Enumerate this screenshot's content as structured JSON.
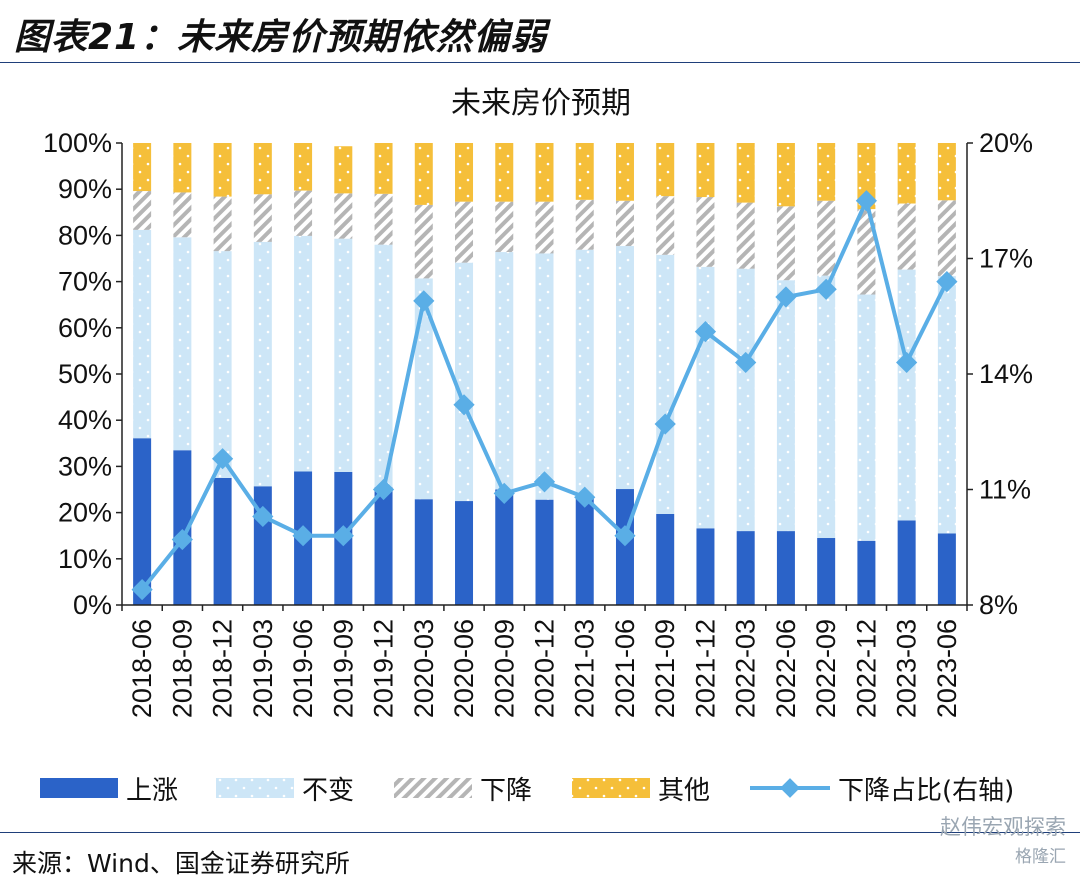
{
  "figure_title": "图表21：未来房价预期依然偏弱",
  "source": "来源：Wind、国金证券研究所",
  "watermark": {
    "line1": "赵伟宏观探索",
    "line2": "格隆汇"
  },
  "colors": {
    "rise": "#2b63c8",
    "unchanged": "#cde6f7",
    "fall": "#bfbfbf",
    "other": "#f5bf3a",
    "line": "#5aaee6"
  },
  "chart_data": {
    "type": "bar",
    "stacked": true,
    "title": "未来房价预期",
    "categories": [
      "2018-06",
      "2018-09",
      "2018-12",
      "2019-03",
      "2019-06",
      "2019-09",
      "2019-12",
      "2020-03",
      "2020-06",
      "2020-09",
      "2020-12",
      "2021-03",
      "2021-06",
      "2021-09",
      "2021-12",
      "2022-03",
      "2022-06",
      "2022-09",
      "2022-12",
      "2023-03",
      "2023-06"
    ],
    "y_left": {
      "min": 0,
      "max": 100,
      "ticks": [
        0,
        10,
        20,
        30,
        40,
        50,
        60,
        70,
        80,
        90,
        100
      ],
      "tick_labels": [
        "0%",
        "10%",
        "20%",
        "30%",
        "40%",
        "50%",
        "60%",
        "70%",
        "80%",
        "90%",
        "100%"
      ]
    },
    "y_right": {
      "min": 8,
      "max": 20,
      "ticks": [
        8,
        11,
        14,
        17,
        20
      ],
      "tick_labels": [
        "8%",
        "11%",
        "14%",
        "17%",
        "20%"
      ]
    },
    "series": [
      {
        "name": "上涨",
        "values": [
          36.1,
          33.5,
          27.5,
          25.7,
          28.9,
          28.8,
          25.5,
          22.9,
          22.5,
          25.0,
          22.8,
          23.2,
          25.1,
          19.7,
          16.6,
          16.0,
          16.0,
          14.5,
          13.9,
          18.3,
          15.5
        ]
      },
      {
        "name": "不变",
        "values": [
          45.1,
          46.1,
          49.1,
          52.9,
          51.0,
          50.5,
          52.5,
          47.8,
          51.6,
          51.4,
          53.3,
          53.7,
          52.6,
          56.1,
          56.6,
          56.8,
          54.3,
          56.8,
          53.3,
          54.3,
          55.7
        ]
      },
      {
        "name": "下降",
        "values": [
          8.4,
          9.7,
          11.8,
          10.3,
          9.8,
          9.8,
          11.0,
          15.9,
          13.2,
          10.9,
          11.2,
          10.8,
          9.8,
          12.7,
          15.1,
          14.3,
          16.0,
          16.2,
          18.5,
          14.3,
          16.4
        ]
      },
      {
        "name": "其他",
        "values": [
          10.4,
          10.7,
          11.6,
          11.1,
          10.3,
          10.2,
          11.0,
          13.4,
          12.7,
          12.7,
          12.7,
          12.3,
          12.5,
          11.5,
          11.7,
          12.9,
          13.7,
          12.5,
          14.3,
          13.1,
          12.4
        ]
      }
    ],
    "line": {
      "name": "下降占比(右轴)",
      "axis": "right",
      "values": [
        8.4,
        9.7,
        11.8,
        10.3,
        9.8,
        9.8,
        11.0,
        15.9,
        13.2,
        10.9,
        11.2,
        10.8,
        9.8,
        12.7,
        15.1,
        14.3,
        16.0,
        16.2,
        18.5,
        14.3,
        16.4
      ]
    },
    "legend": [
      "上涨",
      "不变",
      "下降",
      "其他",
      "下降占比(右轴)"
    ],
    "legend_position": "bottom"
  }
}
